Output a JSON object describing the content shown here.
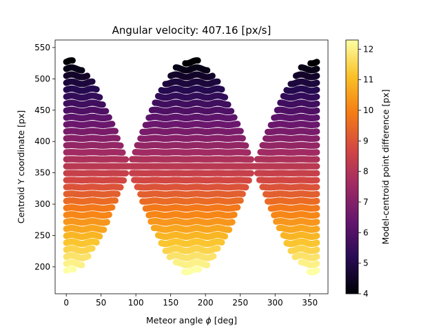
{
  "chart_data": {
    "type": "scatter",
    "title": "Angular velocity: 407.16 [px/s]",
    "xlabel_prefix": "Meteor angle ",
    "xlabel_symbol": "ϕ",
    "xlabel_suffix": " [deg]",
    "ylabel": "Centroid Y coordinate [px]",
    "colorbar_label": "Model-centroid  point difference [px]",
    "xlim": [
      -16,
      376
    ],
    "ylim": [
      157,
      562
    ],
    "xticks": [
      0,
      50,
      100,
      150,
      200,
      250,
      300,
      350
    ],
    "yticks": [
      200,
      250,
      300,
      350,
      400,
      450,
      500,
      550
    ],
    "colorbar_range": [
      4,
      12.3
    ],
    "colorbar_ticks": [
      4,
      5,
      6,
      7,
      8,
      9,
      10,
      11,
      12
    ],
    "colormap": "inferno",
    "colormap_stops": [
      "#000004",
      "#280b54",
      "#65156e",
      "#9f2a63",
      "#d44842",
      "#f57d15",
      "#fac127",
      "#fcffa4"
    ],
    "grid": false,
    "series_description": {
      "y_rows_from": 194,
      "y_rows_to": 527,
      "row_spacing": 11.1,
      "angle_range": [
        0,
        360
      ],
      "angle_step": 1.5,
      "center_y": 360,
      "wave_amplitude": 166,
      "gap_angles": [
        90,
        270
      ],
      "color_low_at_top": 4.0,
      "color_high_at_bottom": 12.3
    }
  }
}
